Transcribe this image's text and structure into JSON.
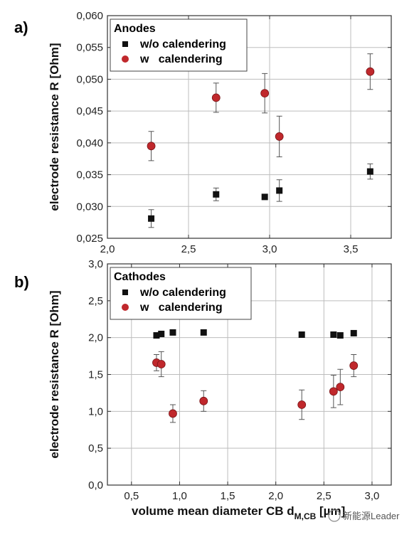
{
  "colors": {
    "series1": "#111111",
    "series2": "#c0282c",
    "grid": "#bdbdbd",
    "axis": "#333333"
  },
  "watermark": "新能源Leader",
  "chart_data": [
    {
      "type": "scatter",
      "panel_label": "a)",
      "legend_title": "Anodes",
      "legend_placement": "top-left",
      "grid": true,
      "xlabel": "",
      "ylabel": "electrode resistance R [Ohm]",
      "xlim": [
        2.0,
        3.75
      ],
      "ylim": [
        0.025,
        0.06
      ],
      "x_ticks": [
        2.0,
        2.5,
        3.0,
        3.5
      ],
      "x_tick_labels": [
        "2,0",
        "2,5",
        "3,0",
        "3,5"
      ],
      "y_ticks": [
        0.025,
        0.03,
        0.035,
        0.04,
        0.045,
        0.05,
        0.055,
        0.06
      ],
      "y_tick_labels": [
        "0,025",
        "0,030",
        "0,035",
        "0,040",
        "0,045",
        "0,050",
        "0,055",
        "0,060"
      ],
      "series": [
        {
          "name": "w/o calendering",
          "marker": "square",
          "x": [
            2.27,
            2.67,
            2.97,
            3.06,
            3.62
          ],
          "y": [
            0.0281,
            0.0319,
            0.0315,
            0.0325,
            0.0355
          ],
          "err": [
            0.0014,
            0.001,
            0.0004,
            0.0017,
            0.0012
          ]
        },
        {
          "name": "w   calendering",
          "marker": "circle",
          "x": [
            2.27,
            2.67,
            2.97,
            3.06,
            3.62
          ],
          "y": [
            0.0395,
            0.0471,
            0.0478,
            0.041,
            0.0512
          ],
          "err": [
            0.0023,
            0.0023,
            0.0031,
            0.0032,
            0.0028
          ]
        }
      ]
    },
    {
      "type": "scatter",
      "panel_label": "b)",
      "legend_title": "Cathodes",
      "legend_placement": "top-left",
      "grid": true,
      "xlabel": "volume mean diameter CB d",
      "xlabel_sub": "M,CB",
      "xlabel_unit": " [µm]",
      "ylabel": "electrode resistance R [Ohm]",
      "xlim": [
        0.25,
        3.2
      ],
      "ylim": [
        0.0,
        3.0
      ],
      "x_ticks": [
        0.5,
        1.0,
        1.5,
        2.0,
        2.5,
        3.0
      ],
      "x_tick_labels": [
        "0,5",
        "1,0",
        "1,5",
        "2,0",
        "2,5",
        "3,0"
      ],
      "y_ticks": [
        0.0,
        0.5,
        1.0,
        1.5,
        2.0,
        2.5,
        3.0
      ],
      "y_tick_labels": [
        "0,0",
        "0,5",
        "1,0",
        "1,5",
        "2,0",
        "2,5",
        "3,0"
      ],
      "series": [
        {
          "name": "w/o calendering",
          "marker": "square",
          "x": [
            0.76,
            0.81,
            0.93,
            1.25,
            2.27,
            2.6,
            2.67,
            2.81
          ],
          "y": [
            2.03,
            2.05,
            2.07,
            2.07,
            2.04,
            2.04,
            2.03,
            2.06
          ],
          "err": [
            0,
            0,
            0,
            0,
            0,
            0,
            0,
            0
          ]
        },
        {
          "name": "w   calendering",
          "marker": "circle",
          "x": [
            0.76,
            0.81,
            0.93,
            1.25,
            2.27,
            2.6,
            2.67,
            2.81
          ],
          "y": [
            1.66,
            1.64,
            0.97,
            1.14,
            1.09,
            1.27,
            1.33,
            1.62
          ],
          "err": [
            0.11,
            0.17,
            0.12,
            0.14,
            0.2,
            0.22,
            0.24,
            0.15
          ]
        }
      ]
    }
  ]
}
